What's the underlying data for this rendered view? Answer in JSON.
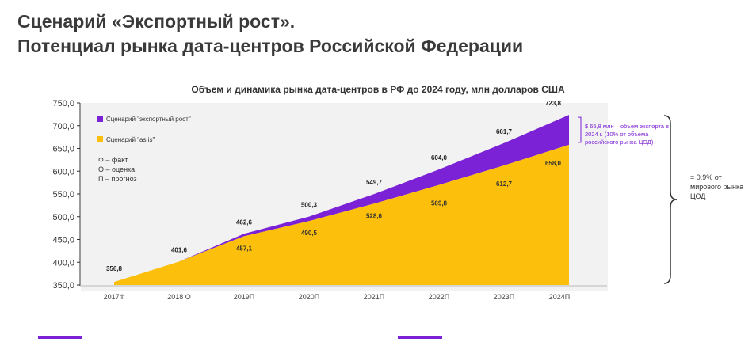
{
  "page_title_lines": [
    "Сценарий «Экспортный рост».",
    "Потенциал рынка дата-центров Российской Федерации"
  ],
  "colors": {
    "export": "#7b22d6",
    "asis": "#fcc00c",
    "panel": "#f2f2f2",
    "accent": "#7b22d6"
  },
  "legend": {
    "export_label": "Сценарий \"экспортный рост\"",
    "asis_label": "Сценарий \"as is\"",
    "notes": [
      "Ф – факт",
      "О – оценка",
      "П – прогноз"
    ]
  },
  "annotations": {
    "export_volume": "$ 65,8 млн – объем экспорта в 2024 г. (10% от объема российского рынка ЦОД)",
    "world_share": "= 0,9% от мирового рынка ЦОД"
  },
  "chart_data": {
    "type": "area",
    "title": "Объем и динамика рынка дата-центров в РФ до 2024 году, млн долларов США",
    "categories": [
      "2017Ф",
      "2018 О",
      "2019П",
      "2020П",
      "2021П",
      "2022П",
      "2023П",
      "2024П"
    ],
    "y_ticks": [
      "750,0",
      "700,0",
      "650,0",
      "600,0",
      "550,0",
      "500,0",
      "450,0",
      "400,0",
      "350,0"
    ],
    "ylim": [
      350,
      750
    ],
    "series": [
      {
        "name": "Сценарий \"экспортный рост\"",
        "values": [
          356.8,
          401.6,
          462.6,
          500.3,
          549.7,
          604.0,
          661.7,
          723.8
        ],
        "labels": [
          "356,8",
          "401,6",
          "462,6",
          "500,3",
          "549,7",
          "604,0",
          "661,7",
          "723,8"
        ]
      },
      {
        "name": "Сценарий \"as is\"",
        "values": [
          356.8,
          401.6,
          457.1,
          490.5,
          528.6,
          569.8,
          612.7,
          658.0
        ],
        "labels": [
          "",
          "",
          "457,1",
          "490,5",
          "528,6",
          "569,8",
          "612,7",
          "658,0"
        ]
      }
    ]
  }
}
